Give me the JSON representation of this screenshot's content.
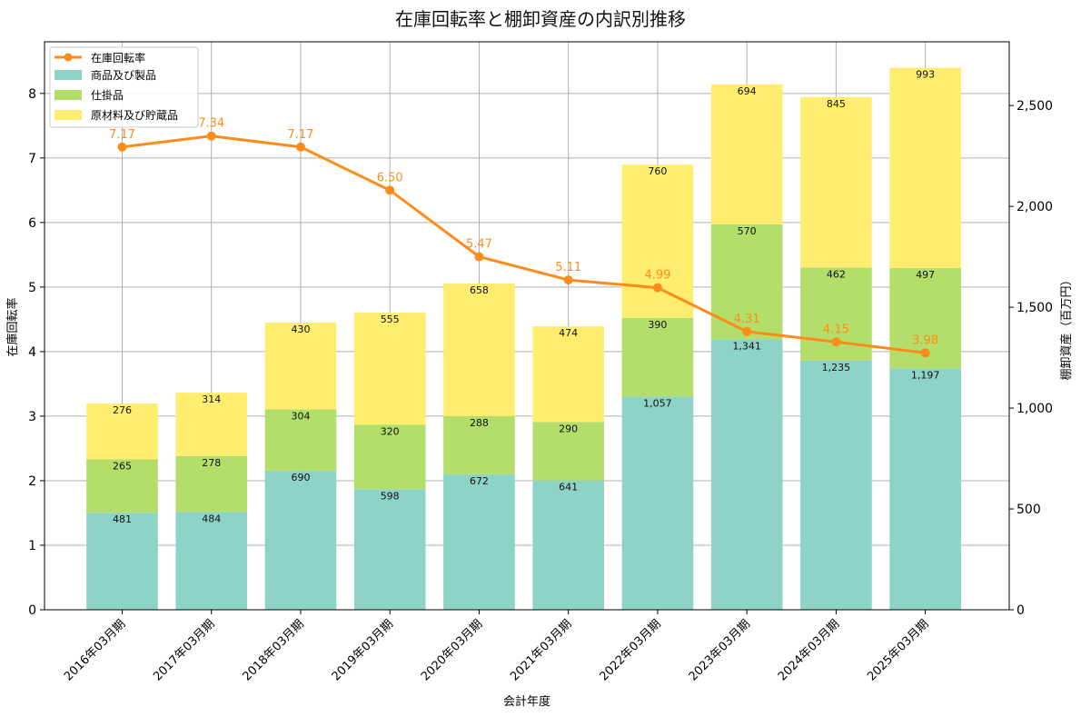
{
  "chart_data": {
    "type": "bar+line",
    "title": "在庫回転率と棚卸資産の内訳別推移",
    "xlabel": "会計年度",
    "ylabel_left": "在庫回転率",
    "ylabel_right": "棚卸資産（百万円）",
    "categories": [
      "2016年03月期",
      "2017年03月期",
      "2018年03月期",
      "2019年03月期",
      "2020年03月期",
      "2021年03月期",
      "2022年03月期",
      "2023年03月期",
      "2024年03月期",
      "2025年03月期"
    ],
    "ylim_left": [
      0,
      8.8
    ],
    "ylim_right": [
      0,
      2816
    ],
    "left_ticks": [
      "0",
      "1",
      "2",
      "3",
      "4",
      "5",
      "6",
      "7",
      "8"
    ],
    "right_ticks": [
      "0",
      "500",
      "1,000",
      "1,500",
      "2,000",
      "2,500"
    ],
    "grid": true,
    "legend_position": "top-left",
    "line_series": {
      "name": "在庫回転率",
      "color": "#ff8c1a",
      "values": [
        7.17,
        7.34,
        7.17,
        6.5,
        5.47,
        5.11,
        4.99,
        4.31,
        4.15,
        3.98
      ],
      "labels": [
        "7.17",
        "7.34",
        "7.17",
        "6.50",
        "5.47",
        "5.11",
        "4.99",
        "4.31",
        "4.15",
        "3.98"
      ]
    },
    "bar_series": [
      {
        "name": "商品及び製品",
        "color": "#8dd3c7",
        "values": [
          481,
          484,
          690,
          598,
          672,
          641,
          1057,
          1341,
          1235,
          1197
        ],
        "labels": [
          "481",
          "484",
          "690",
          "598",
          "672",
          "641",
          "1,057",
          "1,341",
          "1,235",
          "1,197"
        ]
      },
      {
        "name": "仕掛品",
        "color": "#b3de69",
        "values": [
          265,
          278,
          304,
          320,
          288,
          290,
          390,
          570,
          462,
          497
        ],
        "labels": [
          "265",
          "278",
          "304",
          "320",
          "288",
          "290",
          "390",
          "570",
          "462",
          "497"
        ]
      },
      {
        "name": "原材料及び貯蔵品",
        "color": "#ffed6f",
        "values": [
          276,
          314,
          430,
          555,
          658,
          474,
          760,
          694,
          845,
          993
        ],
        "labels": [
          "276",
          "314",
          "430",
          "555",
          "658",
          "474",
          "760",
          "694",
          "845",
          "993"
        ]
      }
    ]
  }
}
